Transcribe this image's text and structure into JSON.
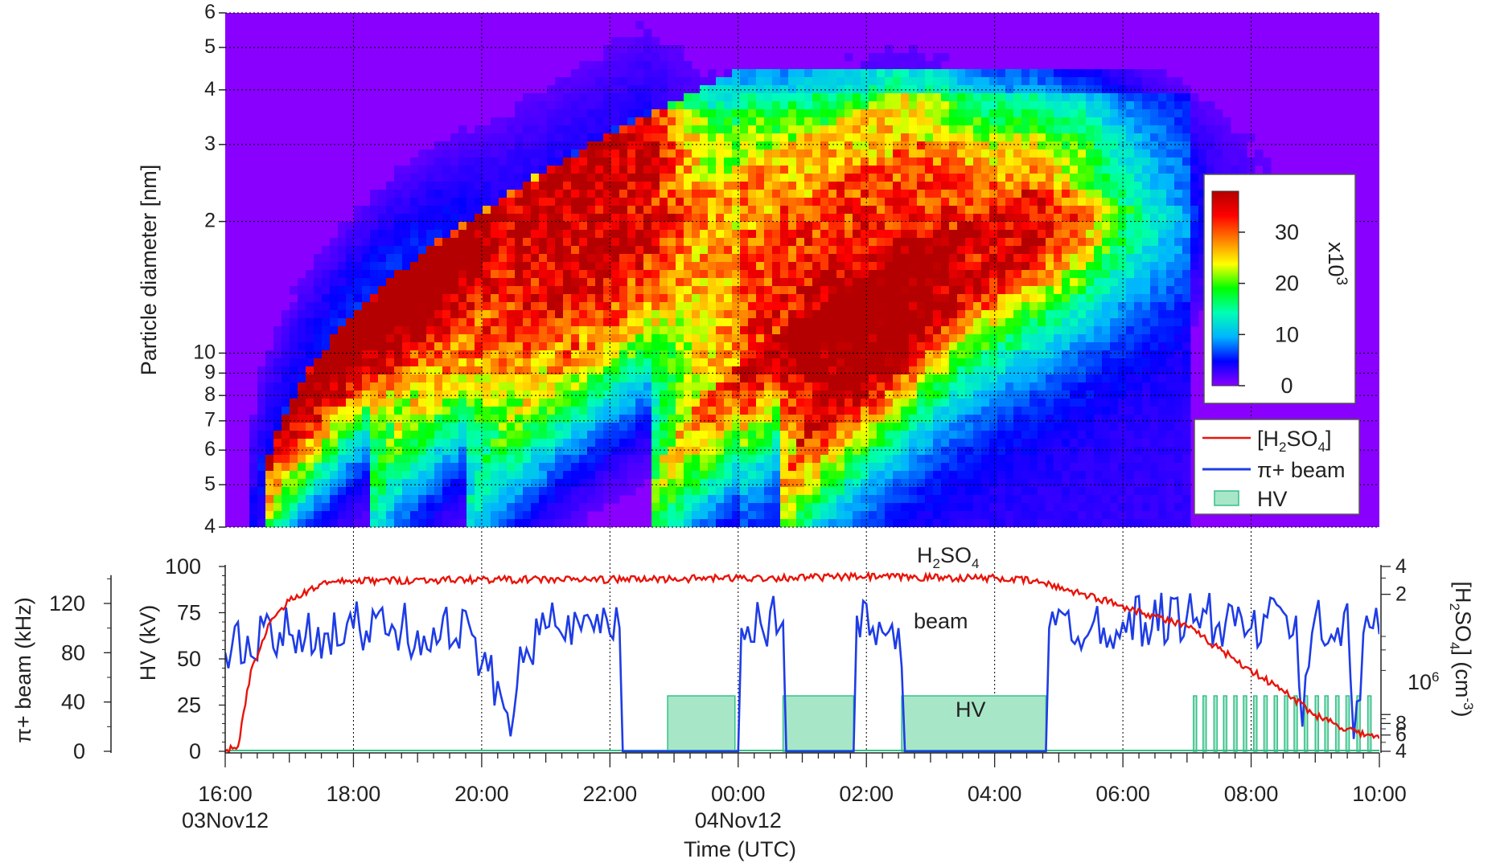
{
  "chart_data": [
    {
      "type": "heatmap",
      "panel": "top",
      "title": "",
      "ylabel": "Particle diameter [nm]",
      "yscale": "log",
      "ylim": [
        4,
        60
      ],
      "xlim_hours": [
        16,
        34
      ],
      "y_tick_labels": [
        {
          "v": 4,
          "t": "4"
        },
        {
          "v": 5,
          "t": "5"
        },
        {
          "v": 6,
          "t": "6"
        },
        {
          "v": 7,
          "t": "7"
        },
        {
          "v": 8,
          "t": "8"
        },
        {
          "v": 9,
          "t": "9"
        },
        {
          "v": 10,
          "t": "10"
        },
        {
          "v": 20,
          "t": "2"
        },
        {
          "v": 30,
          "t": "3"
        },
        {
          "v": 40,
          "t": "4"
        },
        {
          "v": 50,
          "t": "5"
        },
        {
          "v": 60,
          "t": "6"
        }
      ],
      "colorbar": {
        "range": [
          0,
          38
        ],
        "ticks": [
          {
            "v": 0,
            "t": "0"
          },
          {
            "v": 10,
            "t": "10"
          },
          {
            "v": 20,
            "t": "20"
          },
          {
            "v": 30,
            "t": "30"
          }
        ],
        "multiplier_label": "x10",
        "multiplier_exp": "3",
        "colors": [
          "#8a00ff",
          "#0000ff",
          "#00b4ff",
          "#00ffb4",
          "#00ff00",
          "#ffff00",
          "#ff8000",
          "#ff0000",
          "#b40000"
        ]
      },
      "bands": [
        {
          "t0": 16.4,
          "t1": 22.6,
          "peak": 38,
          "dmax": 36
        },
        {
          "t0": 18.2,
          "t1": 26.6,
          "peak": 16,
          "dmax": 40
        },
        {
          "t0": 19.8,
          "t1": 27.2,
          "peak": 14,
          "dmax": 32
        },
        {
          "t0": 22.6,
          "t1": 28.6,
          "peak": 24,
          "dmax": 24
        },
        {
          "t0": 24.6,
          "t1": 29.4,
          "peak": 22,
          "dmax": 22
        }
      ],
      "legend": [
        {
          "key": "h2so4",
          "label": "[H",
          "sub1": "2",
          "mid": "SO",
          "sub2": "4",
          "end": "]",
          "color": "#e8140a"
        },
        {
          "key": "beam",
          "label": "π+ beam",
          "color": "#1e3ce6"
        },
        {
          "key": "hv",
          "label": "HV",
          "color": "#36c08a",
          "fill": "#a8e6c8"
        }
      ]
    },
    {
      "type": "line",
      "panel": "bottom",
      "xlabel": "Time (UTC)",
      "x_ticks": [
        {
          "h": 16,
          "t": "16:00",
          "d": "03Nov12"
        },
        {
          "h": 18,
          "t": "18:00"
        },
        {
          "h": 20,
          "t": "20:00"
        },
        {
          "h": 22,
          "t": "22:00"
        },
        {
          "h": 24,
          "t": "00:00",
          "d": "04Nov12"
        },
        {
          "h": 26,
          "t": "02:00"
        },
        {
          "h": 28,
          "t": "04:00"
        },
        {
          "h": 30,
          "t": "06:00"
        },
        {
          "h": 32,
          "t": "08:00"
        },
        {
          "h": 34,
          "t": "10:00"
        }
      ],
      "hv_axis": {
        "label": "HV (kV)",
        "range": [
          0,
          100
        ],
        "ticks": [
          0,
          25,
          50,
          75,
          100
        ]
      },
      "beam_axis": {
        "label": "π+ beam (kHz)",
        "range": [
          0,
          150
        ],
        "ticks": [
          0,
          40,
          80,
          120
        ]
      },
      "h2so4_axis": {
        "label_parts": [
          "[H",
          "2",
          "SO",
          "4",
          "] (cm",
          "-3",
          ")"
        ],
        "scale": "log",
        "range": [
          4000000.0,
          400000000.0
        ],
        "ticks": [
          {
            "v": 4000000.0,
            "t": "4"
          },
          {
            "v": 6000000.0,
            "t": "6"
          },
          {
            "v": 8000000.0,
            "t": "8"
          },
          {
            "v": 200000000.0,
            "t": "2"
          },
          {
            "v": 400000000.0,
            "t": "4"
          }
        ],
        "decade_label": "10",
        "decade_exp": "6"
      },
      "annotations": [
        {
          "text": "H",
          "sub": "2",
          "text2": "SO",
          "sub2": "4",
          "h": 27.8,
          "frac": 0.06
        },
        {
          "text": "beam",
          "h": 28.2,
          "frac": 0.3
        },
        {
          "text": "HV",
          "h": 27.9,
          "frac": 0.8
        }
      ],
      "series": [
        {
          "name": "beam",
          "color": "#1e3ce6",
          "points": [
            [
              16.0,
              80
            ],
            [
              17.0,
              95
            ],
            [
              18.0,
              100
            ],
            [
              19.0,
              98
            ],
            [
              19.9,
              92
            ],
            [
              20.0,
              70
            ],
            [
              20.5,
              30
            ],
            [
              20.6,
              85
            ],
            [
              21.0,
              100
            ],
            [
              22.0,
              95
            ],
            [
              22.15,
              100
            ],
            [
              22.2,
              0
            ],
            [
              24.0,
              0
            ],
            [
              24.05,
              100
            ],
            [
              24.7,
              105
            ],
            [
              24.75,
              0
            ],
            [
              25.8,
              0
            ],
            [
              25.85,
              110
            ],
            [
              26.5,
              100
            ],
            [
              26.6,
              0
            ],
            [
              28.8,
              0
            ],
            [
              28.85,
              100
            ],
            [
              30.0,
              105
            ],
            [
              31.0,
              110
            ],
            [
              32.0,
              100
            ],
            [
              32.7,
              110
            ],
            [
              32.8,
              20
            ],
            [
              33.0,
              110
            ],
            [
              33.3,
              90
            ],
            [
              33.5,
              120
            ],
            [
              33.6,
              10
            ],
            [
              33.8,
              110
            ],
            [
              33.9,
              100
            ],
            [
              34.0,
              95
            ]
          ]
        },
        {
          "name": "[H2SO4]",
          "color": "#e8140a",
          "points": [
            [
              16.0,
              4000000.0
            ],
            [
              16.2,
              4500000.0
            ],
            [
              16.4,
              30000000.0
            ],
            [
              16.7,
              100000000.0
            ],
            [
              17.0,
              170000000.0
            ],
            [
              17.5,
              260000000.0
            ],
            [
              18.0,
              280000000.0
            ],
            [
              20.0,
              290000000.0
            ],
            [
              22.0,
              290000000.0
            ],
            [
              24.0,
              300000000.0
            ],
            [
              26.0,
              310000000.0
            ],
            [
              28.0,
              300000000.0
            ],
            [
              28.6,
              280000000.0
            ],
            [
              29.2,
              220000000.0
            ],
            [
              30.0,
              150000000.0
            ],
            [
              31.0,
              90000000.0
            ],
            [
              32.0,
              30000000.0
            ],
            [
              32.5,
              18000000.0
            ],
            [
              33.0,
              10000000.0
            ],
            [
              33.5,
              7000000.0
            ],
            [
              34.0,
              5500000.0
            ]
          ]
        },
        {
          "name": "HV",
          "color": "#36c08a",
          "fill": "#a8e6c8",
          "level": 30,
          "segments": [
            [
              22.9,
              23.95
            ],
            [
              24.7,
              25.8
            ],
            [
              26.55,
              28.8
            ],
            [
              31.1,
              31.15
            ],
            [
              31.25,
              31.3
            ],
            [
              31.42,
              31.47
            ],
            [
              31.57,
              31.62
            ],
            [
              31.73,
              31.78
            ],
            [
              31.88,
              31.93
            ],
            [
              32.04,
              32.09
            ],
            [
              32.2,
              32.25
            ],
            [
              32.36,
              32.41
            ],
            [
              32.52,
              32.57
            ],
            [
              32.67,
              32.72
            ],
            [
              32.83,
              32.88
            ],
            [
              33.0,
              33.05
            ],
            [
              33.15,
              33.2
            ],
            [
              33.32,
              33.37
            ],
            [
              33.48,
              33.53
            ],
            [
              33.65,
              33.7
            ],
            [
              33.82,
              33.87
            ]
          ]
        }
      ]
    }
  ]
}
